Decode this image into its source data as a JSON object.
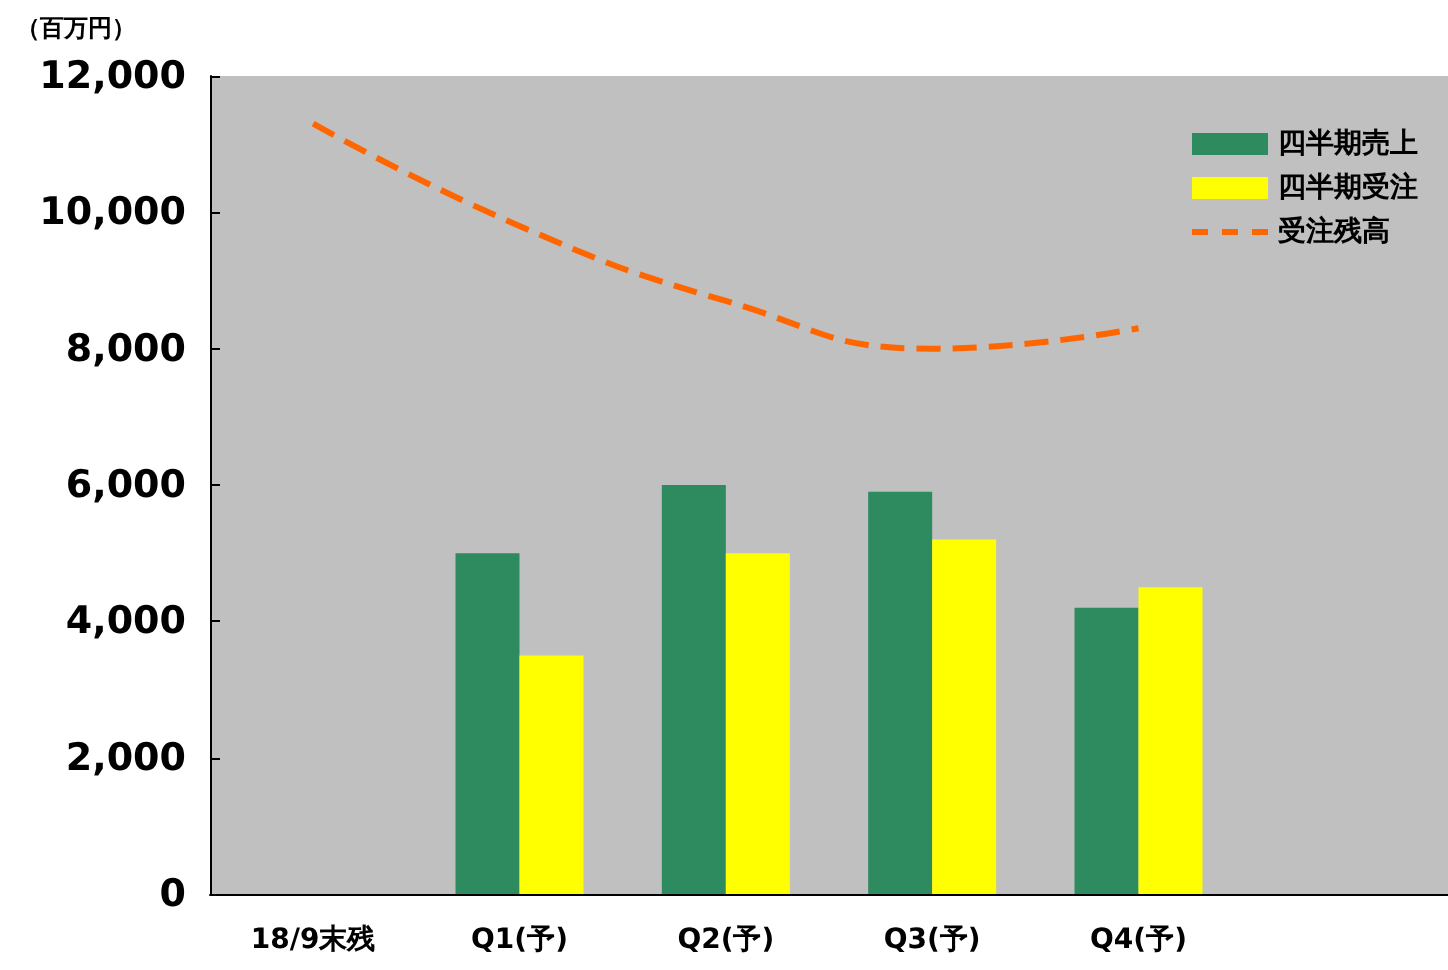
{
  "chart_data": {
    "type": "bar",
    "ylabel": "（百万円）",
    "categories": [
      "18/9末残",
      "Q1(予)",
      "Q2(予)",
      "Q3(予)",
      "Q4(予)",
      null
    ],
    "series": [
      {
        "name": "四半期売上",
        "color": "#2e8b5f",
        "values": [
          null,
          5000,
          6000,
          5900,
          4200,
          null
        ]
      },
      {
        "name": "四半期受注",
        "color": "#ffff00",
        "values": [
          null,
          3500,
          5000,
          5200,
          4500,
          null
        ]
      },
      {
        "name": "受注残高",
        "type": "line",
        "color": "#ff6600",
        "line_style": "dashed",
        "marker": "none",
        "values": [
          11300,
          9800,
          8700,
          8000,
          8300,
          null
        ]
      }
    ],
    "ylim": [
      0,
      12000
    ],
    "yticks": [
      0,
      {
        "value": 2000,
        "label": "2,000"
      },
      {
        "value": 4000,
        "label": "4,000"
      },
      {
        "value": 6000,
        "label": "6,000"
      },
      {
        "value": 8000,
        "label": "8,000"
      },
      {
        "value": 10000,
        "label": "10,000"
      },
      {
        "value": 12000,
        "label": "12,000"
      }
    ],
    "grid": false,
    "legend": "top right"
  }
}
